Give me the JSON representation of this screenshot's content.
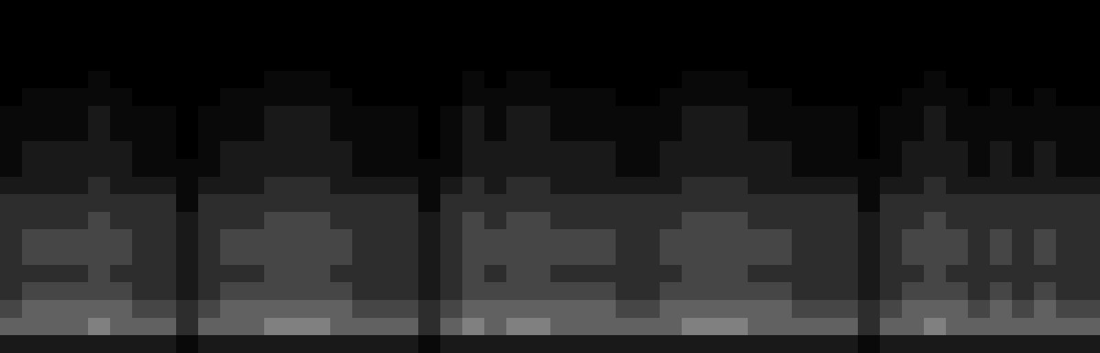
{
  "chart_data": {
    "type": "heatmap",
    "tick_labels": false,
    "cells": [
      [
        0,
        0,
        0,
        0,
        0,
        0,
        0,
        0,
        0,
        0,
        0,
        0,
        0,
        0,
        0,
        0,
        0,
        0,
        0,
        0,
        0,
        0,
        0,
        0,
        0,
        0,
        0,
        0,
        0,
        0,
        0,
        0,
        0,
        0,
        0,
        0,
        0,
        0,
        0,
        0,
        0,
        0,
        0,
        0,
        0,
        0,
        0,
        0,
        0,
        0
      ],
      [
        0,
        0,
        0,
        0,
        0,
        0,
        0,
        0,
        0,
        0,
        0,
        0,
        0,
        0,
        0,
        0,
        0,
        0,
        0,
        0,
        0,
        0,
        0,
        0,
        0,
        0,
        0,
        0,
        0,
        0,
        0,
        0,
        0,
        0,
        0,
        0,
        0,
        0,
        0,
        0,
        0,
        0,
        0,
        0,
        0,
        0,
        0,
        0,
        0,
        0
      ],
      [
        0,
        0,
        0,
        0,
        0,
        0,
        0,
        0,
        0,
        0,
        0,
        0,
        0,
        0,
        0,
        0,
        0,
        0,
        0,
        0,
        0,
        0,
        0,
        0,
        0,
        0,
        0,
        0,
        0,
        0,
        0,
        0,
        0,
        0,
        0,
        0,
        0,
        0,
        0,
        0,
        0,
        0,
        0,
        0,
        0,
        0,
        0,
        0,
        0,
        0
      ],
      [
        0,
        0,
        0,
        0,
        0,
        0,
        0,
        0,
        0,
        0,
        0,
        0,
        0,
        0,
        0,
        0,
        0,
        0,
        0,
        0,
        0,
        0,
        0,
        0,
        0,
        0,
        0,
        0,
        0,
        0,
        0,
        0,
        0,
        0,
        0,
        0,
        0,
        0,
        0,
        0,
        0,
        0,
        0,
        0,
        0,
        0,
        0,
        0,
        0,
        0
      ],
      [
        0,
        0,
        0,
        0,
        1,
        0,
        0,
        0,
        0,
        0,
        0,
        0,
        1,
        1,
        1,
        0,
        0,
        0,
        0,
        0,
        0,
        1,
        0,
        1,
        1,
        0,
        0,
        0,
        0,
        0,
        0,
        1,
        1,
        1,
        0,
        0,
        0,
        0,
        0,
        0,
        0,
        0,
        1,
        0,
        0,
        0,
        0,
        0,
        0,
        0
      ],
      [
        0,
        1,
        1,
        1,
        1,
        1,
        0,
        0,
        0,
        0,
        1,
        1,
        1,
        1,
        1,
        1,
        0,
        0,
        0,
        0,
        0,
        1,
        1,
        1,
        1,
        1,
        1,
        1,
        0,
        0,
        1,
        1,
        1,
        1,
        1,
        1,
        0,
        0,
        0,
        0,
        0,
        1,
        1,
        1,
        0,
        1,
        0,
        1,
        0,
        0
      ],
      [
        1,
        1,
        1,
        1,
        2,
        1,
        1,
        1,
        0,
        1,
        1,
        1,
        2,
        2,
        2,
        1,
        1,
        1,
        1,
        0,
        1,
        2,
        1,
        2,
        2,
        1,
        1,
        1,
        1,
        1,
        1,
        2,
        2,
        2,
        1,
        1,
        1,
        1,
        1,
        0,
        1,
        1,
        2,
        1,
        1,
        1,
        1,
        1,
        1,
        1
      ],
      [
        1,
        1,
        1,
        1,
        2,
        1,
        1,
        1,
        0,
        1,
        1,
        1,
        2,
        2,
        2,
        1,
        1,
        1,
        1,
        0,
        1,
        2,
        1,
        2,
        2,
        1,
        1,
        1,
        1,
        1,
        1,
        2,
        2,
        2,
        1,
        1,
        1,
        1,
        1,
        0,
        1,
        1,
        2,
        1,
        1,
        1,
        1,
        1,
        1,
        1
      ],
      [
        1,
        2,
        2,
        2,
        2,
        2,
        1,
        1,
        0,
        1,
        2,
        2,
        2,
        2,
        2,
        2,
        1,
        1,
        1,
        0,
        1,
        2,
        2,
        2,
        2,
        2,
        2,
        2,
        1,
        1,
        2,
        2,
        2,
        2,
        2,
        2,
        1,
        1,
        1,
        0,
        1,
        2,
        2,
        2,
        1,
        2,
        1,
        2,
        1,
        1
      ],
      [
        1,
        2,
        2,
        2,
        2,
        2,
        1,
        1,
        1,
        1,
        2,
        2,
        2,
        2,
        2,
        2,
        1,
        1,
        1,
        1,
        1,
        2,
        2,
        2,
        2,
        2,
        2,
        2,
        1,
        1,
        2,
        2,
        2,
        2,
        2,
        2,
        1,
        1,
        1,
        1,
        1,
        2,
        2,
        2,
        1,
        2,
        1,
        2,
        1,
        1
      ],
      [
        2,
        2,
        2,
        2,
        3,
        2,
        2,
        2,
        1,
        2,
        2,
        2,
        3,
        3,
        3,
        2,
        2,
        2,
        2,
        1,
        2,
        3,
        2,
        3,
        3,
        2,
        2,
        2,
        2,
        2,
        2,
        3,
        3,
        3,
        2,
        2,
        2,
        2,
        2,
        1,
        2,
        2,
        3,
        2,
        2,
        2,
        2,
        2,
        2,
        2
      ],
      [
        3,
        3,
        3,
        3,
        3,
        3,
        3,
        3,
        1,
        3,
        3,
        3,
        3,
        3,
        3,
        3,
        3,
        3,
        3,
        1,
        3,
        3,
        3,
        3,
        3,
        3,
        3,
        3,
        3,
        3,
        3,
        3,
        3,
        3,
        3,
        3,
        3,
        3,
        3,
        1,
        3,
        3,
        3,
        3,
        3,
        3,
        3,
        3,
        3,
        3
      ],
      [
        3,
        3,
        3,
        3,
        4,
        3,
        3,
        3,
        2,
        3,
        3,
        3,
        4,
        4,
        4,
        3,
        3,
        3,
        3,
        2,
        3,
        4,
        3,
        4,
        4,
        3,
        3,
        3,
        3,
        3,
        3,
        4,
        4,
        4,
        3,
        3,
        3,
        3,
        3,
        2,
        3,
        3,
        4,
        3,
        3,
        3,
        3,
        3,
        3,
        3
      ],
      [
        3,
        4,
        4,
        4,
        4,
        4,
        3,
        3,
        2,
        3,
        4,
        4,
        4,
        4,
        4,
        4,
        3,
        3,
        3,
        2,
        3,
        4,
        4,
        4,
        4,
        4,
        4,
        4,
        3,
        3,
        4,
        4,
        4,
        4,
        4,
        4,
        3,
        3,
        3,
        2,
        3,
        4,
        4,
        4,
        3,
        4,
        3,
        4,
        3,
        3
      ],
      [
        3,
        4,
        4,
        4,
        4,
        4,
        3,
        3,
        2,
        3,
        4,
        4,
        4,
        4,
        4,
        4,
        3,
        3,
        3,
        2,
        3,
        4,
        4,
        4,
        4,
        4,
        4,
        4,
        3,
        3,
        4,
        4,
        4,
        4,
        4,
        4,
        3,
        3,
        3,
        2,
        3,
        4,
        4,
        4,
        3,
        4,
        3,
        4,
        3,
        3
      ],
      [
        3,
        3,
        3,
        3,
        4,
        3,
        3,
        3,
        2,
        3,
        3,
        3,
        4,
        4,
        4,
        3,
        3,
        3,
        3,
        2,
        3,
        4,
        3,
        4,
        4,
        3,
        3,
        3,
        3,
        3,
        3,
        4,
        4,
        4,
        3,
        3,
        3,
        3,
        3,
        2,
        3,
        3,
        4,
        3,
        3,
        3,
        3,
        3,
        3,
        3
      ],
      [
        3,
        4,
        4,
        4,
        4,
        4,
        3,
        3,
        2,
        3,
        4,
        4,
        4,
        4,
        4,
        4,
        3,
        3,
        3,
        2,
        3,
        4,
        4,
        4,
        4,
        4,
        4,
        4,
        3,
        3,
        4,
        4,
        4,
        4,
        4,
        4,
        3,
        3,
        3,
        2,
        3,
        4,
        4,
        4,
        3,
        4,
        3,
        4,
        3,
        3
      ],
      [
        4,
        5,
        5,
        5,
        5,
        5,
        4,
        4,
        3,
        4,
        5,
        5,
        5,
        5,
        5,
        5,
        4,
        4,
        4,
        3,
        4,
        5,
        5,
        5,
        5,
        5,
        5,
        5,
        4,
        4,
        5,
        5,
        5,
        5,
        5,
        5,
        4,
        4,
        4,
        3,
        4,
        5,
        5,
        5,
        4,
        5,
        4,
        5,
        4,
        4
      ],
      [
        5,
        5,
        5,
        5,
        6,
        5,
        5,
        5,
        3,
        5,
        5,
        5,
        6,
        6,
        6,
        5,
        5,
        5,
        5,
        3,
        5,
        6,
        5,
        6,
        6,
        5,
        5,
        5,
        5,
        5,
        5,
        6,
        6,
        6,
        5,
        5,
        5,
        5,
        5,
        3,
        5,
        5,
        6,
        5,
        5,
        5,
        5,
        5,
        5,
        5
      ],
      [
        2,
        2,
        2,
        2,
        2,
        2,
        2,
        2,
        1,
        2,
        2,
        2,
        2,
        2,
        2,
        2,
        2,
        2,
        2,
        1,
        2,
        2,
        2,
        2,
        2,
        2,
        2,
        2,
        2,
        2,
        2,
        2,
        2,
        2,
        2,
        2,
        2,
        2,
        2,
        1,
        2,
        2,
        2,
        2,
        2,
        2,
        2,
        2,
        2,
        2
      ]
    ]
  }
}
